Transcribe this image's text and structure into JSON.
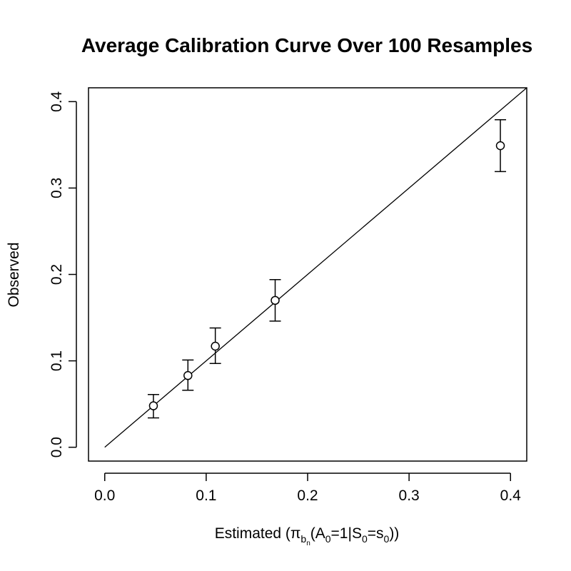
{
  "chart_data": {
    "type": "scatter",
    "title": "Average Calibration Curve Over 100 Resamples",
    "xlabel": "Estimated (π_{b_n}(A_0=1|S_0=s_0))",
    "xlabel_parts": {
      "prefix": "Estimated (",
      "pi": "π",
      "b": "b",
      "n": "n",
      "a_open": "(A",
      "a_sub": "0",
      "mid": "=1|S",
      "s_sub": "0",
      "eq_s": "=s",
      "s0_sub": "0",
      "close": "))"
    },
    "ylabel": "Observed",
    "xlim": [
      -0.016,
      0.416
    ],
    "ylim": [
      -0.016,
      0.416
    ],
    "x_ticks": [
      0.0,
      0.1,
      0.2,
      0.3,
      0.4
    ],
    "x_tick_labels": [
      "0.0",
      "0.1",
      "0.2",
      "0.3",
      "0.4"
    ],
    "y_ticks": [
      0.0,
      0.1,
      0.2,
      0.3,
      0.4
    ],
    "y_tick_labels": [
      "0.0",
      "0.1",
      "0.2",
      "0.3",
      "0.4"
    ],
    "reference_line": {
      "from": [
        0.0,
        0.0
      ],
      "to": [
        0.416,
        0.416
      ]
    },
    "points": [
      {
        "x": 0.048,
        "y": 0.048,
        "lower": 0.034,
        "upper": 0.061
      },
      {
        "x": 0.082,
        "y": 0.083,
        "lower": 0.066,
        "upper": 0.101
      },
      {
        "x": 0.109,
        "y": 0.117,
        "lower": 0.097,
        "upper": 0.138
      },
      {
        "x": 0.168,
        "y": 0.17,
        "lower": 0.146,
        "upper": 0.194
      },
      {
        "x": 0.39,
        "y": 0.349,
        "lower": 0.319,
        "upper": 0.379
      }
    ]
  }
}
